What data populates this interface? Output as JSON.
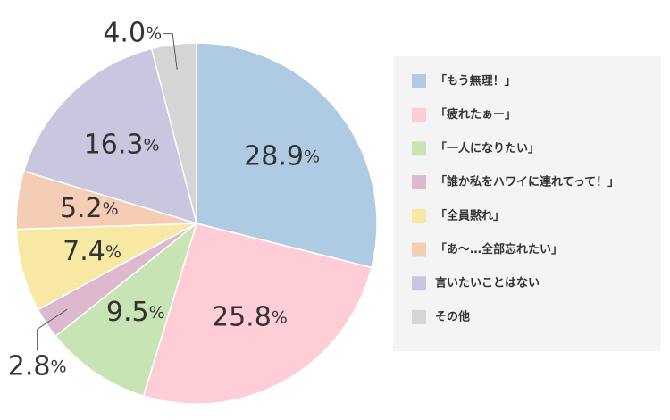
{
  "chart_data": {
    "type": "pie",
    "categories": [
      "「もう無理！」",
      "「疲れたぁー」",
      "「一人になりたい」",
      "「誰か私をハワイに連れてって！」",
      "「全員黙れ」",
      "「あ〜…全部忘れたい」",
      "言いたいことはない",
      "その他"
    ],
    "values": [
      28.9,
      25.8,
      9.5,
      2.8,
      7.4,
      5.2,
      16.3,
      4.0
    ],
    "value_labels": [
      "28.9%",
      "25.8%",
      "9.5%",
      "2.8%",
      "7.4%",
      "5.2%",
      "16.3%",
      "4.0%"
    ],
    "colors": [
      "#aecbe3",
      "#ffcdd6",
      "#c8e3b4",
      "#dcb9cf",
      "#f7e8a3",
      "#f5cdb4",
      "#c9c7df",
      "#d5d5d5"
    ]
  }
}
